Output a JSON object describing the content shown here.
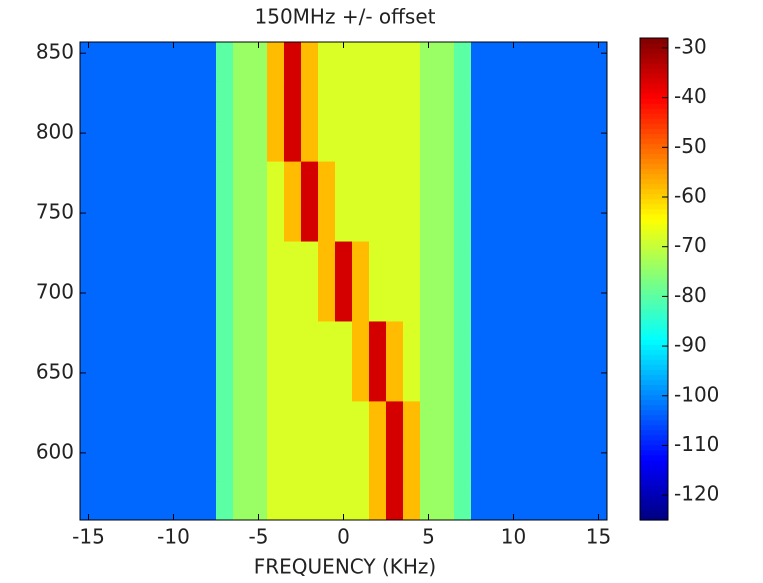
{
  "chart_data": {
    "type": "heatmap",
    "title": "150MHz +/- offset",
    "x_label": "FREQUENCY (KHz)",
    "x": [
      -15,
      -14,
      -13,
      -12,
      -11,
      -10,
      -9,
      -8,
      -7,
      -6,
      -5,
      -4,
      -3,
      -2,
      -1,
      0,
      1,
      2,
      3,
      4,
      5,
      6,
      7,
      8,
      9,
      10,
      11,
      12,
      13,
      14,
      15
    ],
    "y": [
      570,
      595,
      620,
      645,
      670,
      695,
      720,
      745,
      770,
      795,
      820,
      845
    ],
    "z": [
      [
        -103,
        -103,
        -103,
        -103,
        -103,
        -103,
        -103,
        -103,
        -80,
        -74,
        -74,
        -68,
        -68,
        -68,
        -68,
        -68,
        -68,
        -58,
        -36,
        -58,
        -74,
        -74,
        -80,
        -103,
        -103,
        -103,
        -103,
        -103,
        -103,
        -103,
        -103
      ],
      [
        -103,
        -103,
        -103,
        -103,
        -103,
        -103,
        -103,
        -103,
        -80,
        -74,
        -74,
        -68,
        -68,
        -68,
        -68,
        -68,
        -68,
        -58,
        -36,
        -58,
        -74,
        -74,
        -80,
        -103,
        -103,
        -103,
        -103,
        -103,
        -103,
        -103,
        -103
      ],
      [
        -103,
        -103,
        -103,
        -103,
        -103,
        -103,
        -103,
        -103,
        -80,
        -74,
        -74,
        -68,
        -68,
        -68,
        -68,
        -68,
        -68,
        -58,
        -36,
        -58,
        -74,
        -74,
        -80,
        -103,
        -103,
        -103,
        -103,
        -103,
        -103,
        -103,
        -103
      ],
      [
        -103,
        -103,
        -103,
        -103,
        -103,
        -103,
        -103,
        -103,
        -80,
        -74,
        -74,
        -68,
        -68,
        -68,
        -68,
        -68,
        -58,
        -36,
        -58,
        -68,
        -74,
        -74,
        -80,
        -103,
        -103,
        -103,
        -103,
        -103,
        -103,
        -103,
        -103
      ],
      [
        -103,
        -103,
        -103,
        -103,
        -103,
        -103,
        -103,
        -103,
        -80,
        -74,
        -74,
        -68,
        -68,
        -68,
        -68,
        -68,
        -58,
        -36,
        -58,
        -68,
        -74,
        -74,
        -80,
        -103,
        -103,
        -103,
        -103,
        -103,
        -103,
        -103,
        -103
      ],
      [
        -103,
        -103,
        -103,
        -103,
        -103,
        -103,
        -103,
        -103,
        -80,
        -74,
        -74,
        -68,
        -68,
        -68,
        -58,
        -36,
        -58,
        -68,
        -68,
        -68,
        -74,
        -74,
        -80,
        -103,
        -103,
        -103,
        -103,
        -103,
        -103,
        -103,
        -103
      ],
      [
        -103,
        -103,
        -103,
        -103,
        -103,
        -103,
        -103,
        -103,
        -80,
        -74,
        -74,
        -68,
        -68,
        -68,
        -58,
        -36,
        -58,
        -68,
        -68,
        -68,
        -74,
        -74,
        -80,
        -103,
        -103,
        -103,
        -103,
        -103,
        -103,
        -103,
        -103
      ],
      [
        -103,
        -103,
        -103,
        -103,
        -103,
        -103,
        -103,
        -103,
        -80,
        -74,
        -74,
        -68,
        -58,
        -36,
        -58,
        -68,
        -68,
        -68,
        -68,
        -68,
        -74,
        -74,
        -80,
        -103,
        -103,
        -103,
        -103,
        -103,
        -103,
        -103,
        -103
      ],
      [
        -103,
        -103,
        -103,
        -103,
        -103,
        -103,
        -103,
        -103,
        -80,
        -74,
        -74,
        -68,
        -58,
        -36,
        -58,
        -68,
        -68,
        -68,
        -68,
        -68,
        -74,
        -74,
        -80,
        -103,
        -103,
        -103,
        -103,
        -103,
        -103,
        -103,
        -103
      ],
      [
        -103,
        -103,
        -103,
        -103,
        -103,
        -103,
        -103,
        -103,
        -80,
        -74,
        -74,
        -58,
        -36,
        -58,
        -68,
        -68,
        -68,
        -68,
        -68,
        -68,
        -74,
        -74,
        -80,
        -103,
        -103,
        -103,
        -103,
        -103,
        -103,
        -103,
        -103
      ],
      [
        -103,
        -103,
        -103,
        -103,
        -103,
        -103,
        -103,
        -103,
        -80,
        -74,
        -74,
        -58,
        -36,
        -58,
        -68,
        -68,
        -68,
        -68,
        -68,
        -68,
        -74,
        -74,
        -80,
        -103,
        -103,
        -103,
        -103,
        -103,
        -103,
        -103,
        -103
      ],
      [
        -103,
        -103,
        -103,
        -103,
        -103,
        -103,
        -103,
        -103,
        -80,
        -74,
        -74,
        -58,
        -36,
        -58,
        -68,
        -68,
        -68,
        -68,
        -68,
        -68,
        -74,
        -74,
        -80,
        -103,
        -103,
        -103,
        -103,
        -103,
        -103,
        -103,
        -103
      ]
    ],
    "xlim": [
      -15.5,
      15.5
    ],
    "ylim": [
      558,
      857
    ],
    "xticks": [
      -15,
      -10,
      -5,
      0,
      5,
      10,
      15
    ],
    "yticks": [
      600,
      650,
      700,
      750,
      800,
      850
    ],
    "zlim": [
      -125,
      -28
    ],
    "zticks": [
      -30,
      -40,
      -50,
      -60,
      -70,
      -80,
      -90,
      -100,
      -110,
      -120
    ],
    "colormap": "jet"
  }
}
